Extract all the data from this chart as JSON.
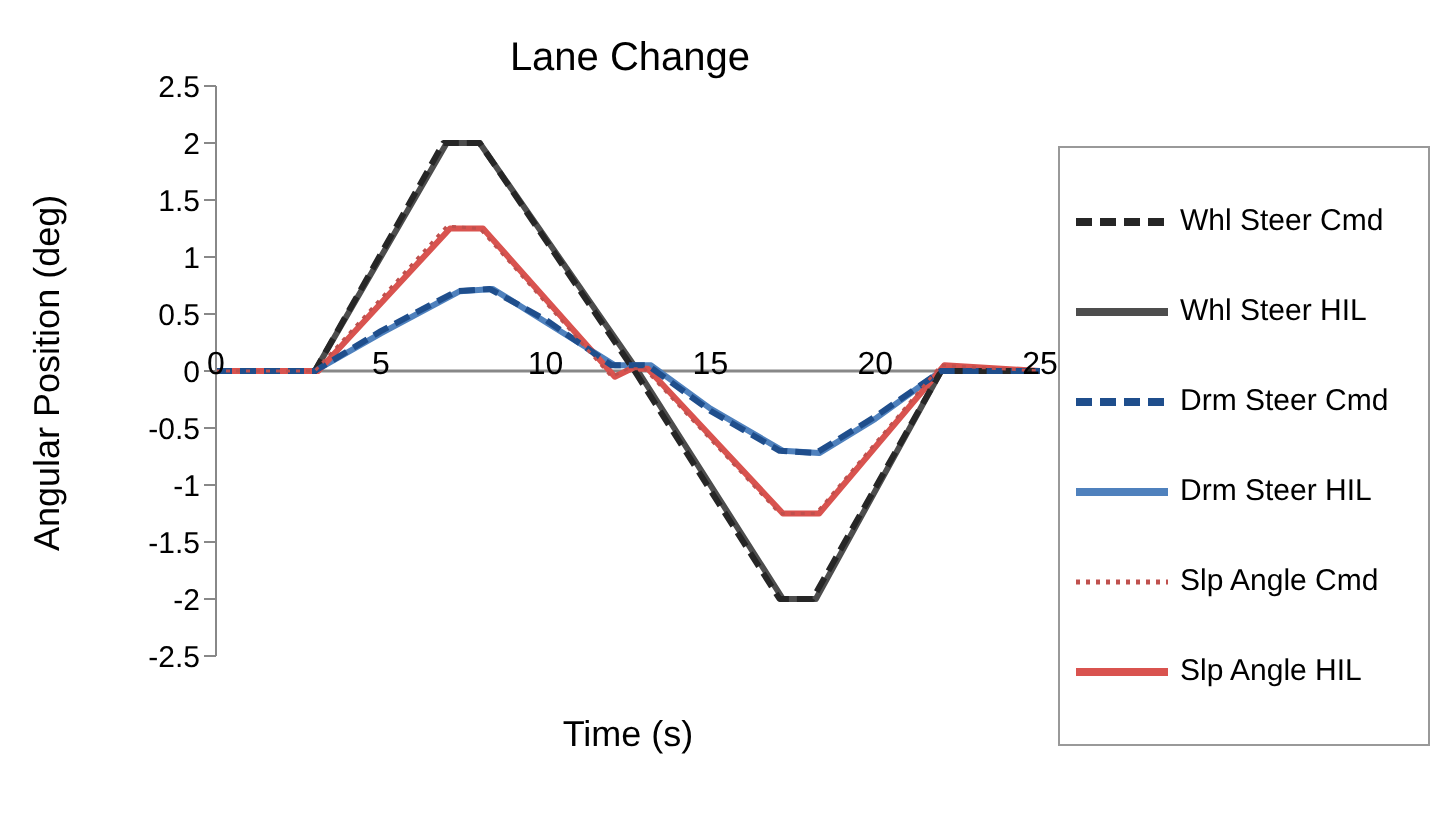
{
  "chart_data": {
    "type": "line",
    "title": "Lane Change",
    "xlabel": "Time (s)",
    "ylabel": "Angular Position (deg)",
    "xlim": [
      0,
      25
    ],
    "xticks": [
      0,
      5,
      10,
      15,
      20,
      25
    ],
    "ylim": [
      -2.5,
      2.5
    ],
    "yticks": [
      -2.5,
      -2,
      -1.5,
      -1,
      -0.5,
      0,
      0.5,
      1,
      1.5,
      2,
      2.5
    ],
    "grid": false,
    "legend": "right",
    "marker": "none",
    "series": [
      {
        "name": "Whl Steer Cmd",
        "color": "#262626",
        "line_style": "dashed",
        "x": [
          0,
          3,
          6.9,
          8,
          12.7,
          17.1,
          18.1,
          22,
          25
        ],
        "values": [
          0,
          0,
          2,
          2,
          0,
          -2,
          -2,
          0,
          0
        ]
      },
      {
        "name": "Whl Steer HIL",
        "color": "#4d4d4d",
        "line_style": "solid",
        "x": [
          0,
          3,
          7,
          8,
          12.8,
          17.2,
          18.2,
          22,
          25
        ],
        "values": [
          0,
          0,
          2,
          2,
          0,
          -2,
          -2,
          0,
          0
        ]
      },
      {
        "name": "Drm Steer Cmd",
        "color": "#1f4e8c",
        "line_style": "dashed",
        "x": [
          0,
          3,
          5,
          7.3,
          8.3,
          10,
          12,
          13.1,
          15,
          17.1,
          18.2,
          20,
          22,
          25
        ],
        "values": [
          0,
          0,
          0.35,
          0.7,
          0.72,
          0.45,
          0.05,
          0.05,
          -0.35,
          -0.7,
          -0.72,
          -0.4,
          0,
          0
        ]
      },
      {
        "name": "Drm Steer HIL",
        "color": "#4f81bd",
        "line_style": "solid",
        "x": [
          0,
          3,
          5,
          7.4,
          8.4,
          10,
          12.1,
          13.2,
          15,
          17.2,
          18.3,
          20,
          22,
          25
        ],
        "values": [
          0,
          0,
          0.33,
          0.7,
          0.72,
          0.43,
          0.05,
          0.05,
          -0.33,
          -0.7,
          -0.72,
          -0.42,
          0,
          0
        ]
      },
      {
        "name": "Slp Angle Cmd",
        "color": "#c0504d",
        "line_style": "dotted",
        "x": [
          0,
          3,
          7,
          8,
          12,
          12.5,
          13,
          17.1,
          18.2,
          22,
          25
        ],
        "values": [
          0,
          0,
          1.27,
          1.25,
          -0.05,
          0.02,
          0.02,
          -1.25,
          -1.25,
          0.05,
          0
        ]
      },
      {
        "name": "Slp Angle HIL",
        "color": "#d9534f",
        "line_style": "solid",
        "x": [
          0,
          3.1,
          7.1,
          8.1,
          12.1,
          12.6,
          13.1,
          17.2,
          18.3,
          22.1,
          25
        ],
        "values": [
          0,
          0,
          1.25,
          1.25,
          -0.05,
          0.02,
          0.02,
          -1.25,
          -1.25,
          0.05,
          0
        ]
      }
    ]
  }
}
